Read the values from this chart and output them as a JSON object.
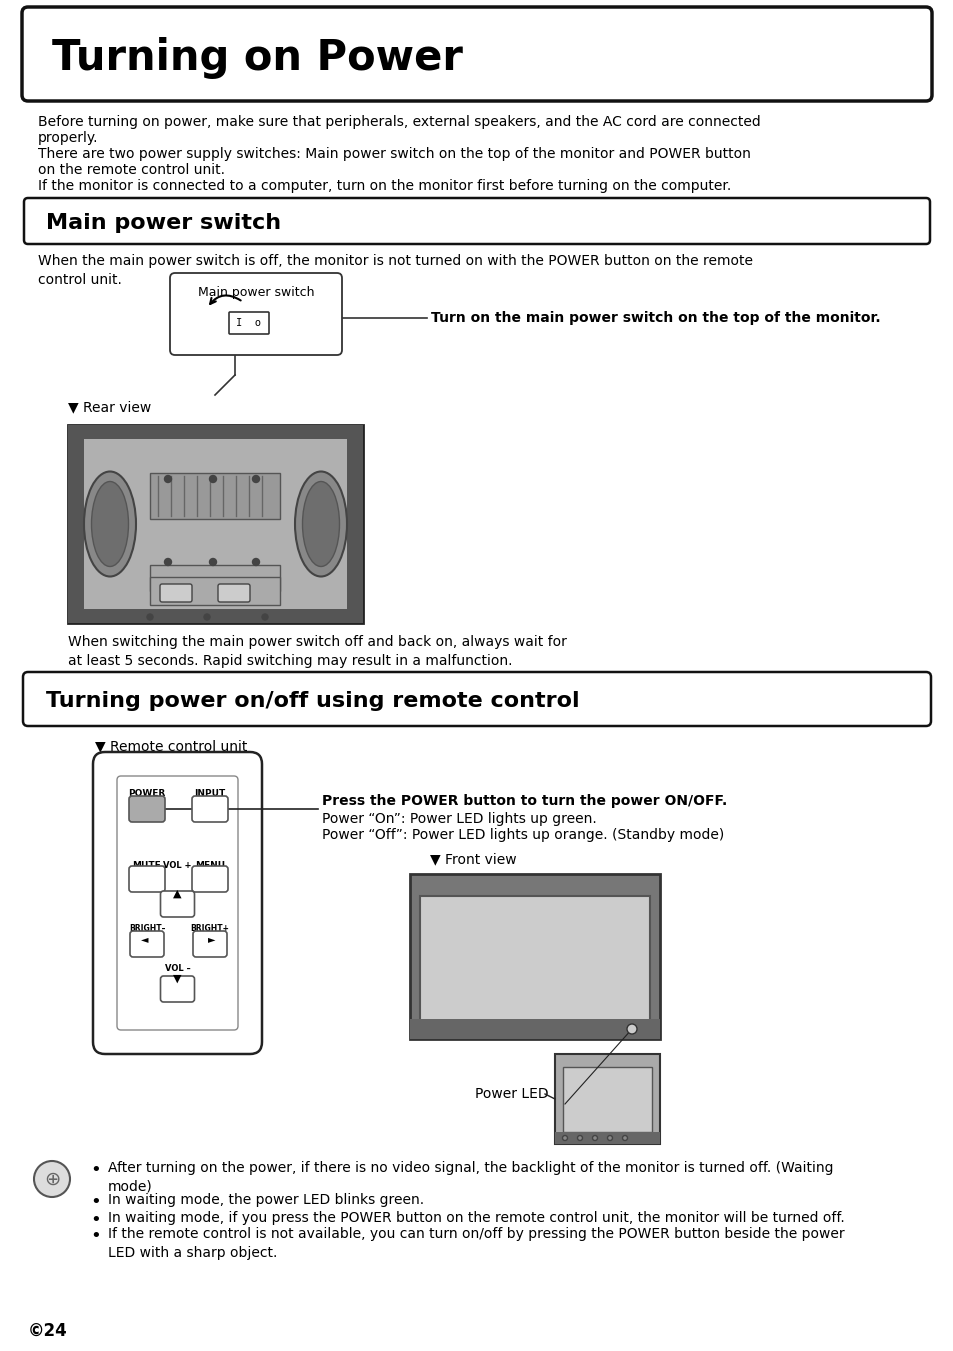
{
  "title": "Turning on Power",
  "bg_color": "#ffffff",
  "page_number": "©24",
  "intro_text_lines": [
    "Before turning on power, make sure that peripherals, external speakers, and the AC cord are connected",
    "properly.",
    "There are two power supply switches: Main power switch on the top of the monitor and POWER button",
    "on the remote control unit.",
    "If the monitor is connected to a computer, turn on the monitor first before turning on the computer."
  ],
  "section1_title": "Main power switch",
  "section1_text": "When the main power switch is off, the monitor is not turned on with the POWER button on the remote\ncontrol unit.",
  "callout_label": "Main power switch",
  "callout_instruction": "Turn on the main power switch on the top of the monitor.",
  "rear_view_label": "▼ Rear view",
  "switch_warning": "When switching the main power switch off and back on, always wait for\nat least 5 seconds. Rapid switching may result in a malfunction.",
  "section2_title": "Turning power on/off using remote control",
  "remote_label": "▼ Remote control unit",
  "remote_instruction_bold": "Press the POWER button to turn the power ON/OFF.",
  "remote_instruction1": "Power “On”: Power LED lights up green.",
  "remote_instruction2": "Power “Off”: Power LED lights up orange. (Standby mode)",
  "front_view_label": "▼ Front view",
  "power_led_label": "Power LED",
  "bullet_points": [
    "After turning on the power, if there is no video signal, the backlight of the monitor is turned off. (Waiting\nmode)",
    "In waiting mode, the power LED blinks green.",
    "In waiting mode, if you press the POWER button on the remote control unit, the monitor will be turned off.",
    "If the remote control is not available, you can turn on/off by pressing the POWER button beside the power\nLED with a sharp object."
  ]
}
